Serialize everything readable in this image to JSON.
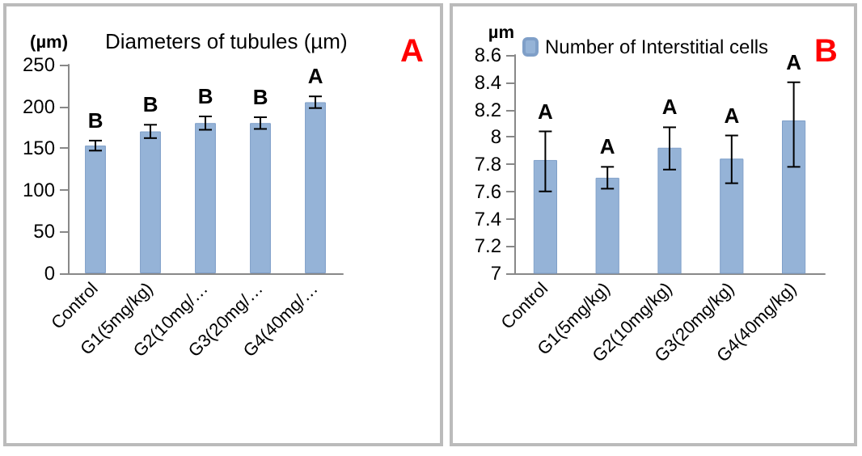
{
  "chart_data": [
    {
      "type": "bar",
      "title": "Diameters of tubules (µm)",
      "ylabel": "(µm)",
      "categories": [
        "Control",
        "G1(5mg/kg)",
        "G2(10mg/…",
        "G3(20mg/…",
        "G4(40mg/…"
      ],
      "values": [
        153,
        170,
        180,
        180,
        205
      ],
      "errors": [
        6,
        8,
        8,
        7,
        7
      ],
      "value_labels": [
        "B",
        "B",
        "B",
        "B",
        "A"
      ],
      "color": "#95b3d7",
      "ylim": [
        0,
        250
      ],
      "yticks": [
        0,
        50,
        100,
        150,
        200,
        250
      ],
      "grid": false,
      "legend": false,
      "annotations": [
        "A"
      ]
    },
    {
      "type": "bar",
      "ylabel": "µm",
      "categories": [
        "Control",
        "G1(5mg/kg)",
        "G2(10mg/kg)",
        "G3(20mg/kg)",
        "G4(40mg/kg)"
      ],
      "series": [
        {
          "name": "Number of Interstitial cells",
          "color": "#95b3d7",
          "values": [
            7.83,
            7.7,
            7.92,
            7.84,
            8.12
          ],
          "errors": [
            [
              7.6,
              8.04
            ],
            [
              7.62,
              7.78
            ],
            [
              7.76,
              8.07
            ],
            [
              7.66,
              8.01
            ],
            [
              7.78,
              8.4
            ]
          ],
          "value_labels": [
            "A",
            "A",
            "A",
            "A",
            "A"
          ]
        }
      ],
      "ylim": [
        7,
        8.6
      ],
      "yticks": [
        7,
        7.2,
        7.4,
        7.6,
        7.8,
        8,
        8.2,
        8.4,
        8.6
      ],
      "grid": false,
      "legend": "top",
      "annotations": [
        "B"
      ]
    }
  ]
}
